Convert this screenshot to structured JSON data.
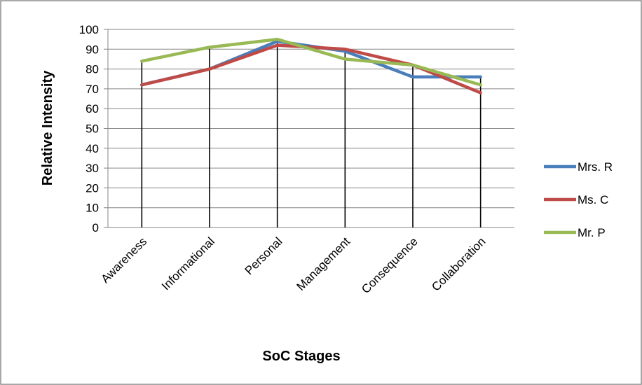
{
  "chart_data": {
    "type": "line",
    "title": "",
    "xlabel": "SoC Stages",
    "ylabel": "Relative Intensity",
    "categories": [
      "Awareness",
      "Informational",
      "Personal",
      "Management",
      "Consequence",
      "Collaboration"
    ],
    "ylim": [
      0,
      100
    ],
    "yticks": [
      0,
      10,
      20,
      30,
      40,
      50,
      60,
      70,
      80,
      90,
      100
    ],
    "grid": "horizontal",
    "legend_position": "right",
    "series": [
      {
        "name": "Mrs. R",
        "color": "#4a7ebb",
        "values": [
          72,
          80,
          94,
          89,
          76,
          76
        ]
      },
      {
        "name": "Ms. C",
        "color": "#be4b48",
        "values": [
          72,
          80,
          92,
          90,
          82,
          68
        ]
      },
      {
        "name": "Mr. P",
        "color": "#98b954",
        "values": [
          84,
          91,
          95,
          85,
          82,
          72
        ]
      }
    ]
  }
}
